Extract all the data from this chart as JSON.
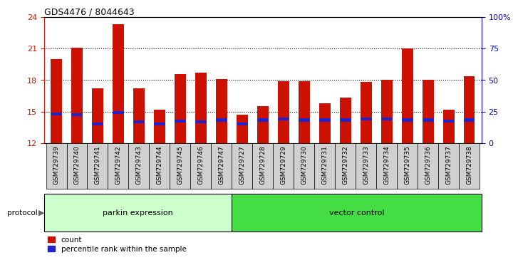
{
  "title": "GDS4476 / 8044643",
  "samples": [
    "GSM729739",
    "GSM729740",
    "GSM729741",
    "GSM729742",
    "GSM729743",
    "GSM729744",
    "GSM729745",
    "GSM729746",
    "GSM729747",
    "GSM729727",
    "GSM729728",
    "GSM729729",
    "GSM729730",
    "GSM729731",
    "GSM729732",
    "GSM729733",
    "GSM729734",
    "GSM729735",
    "GSM729736",
    "GSM729737",
    "GSM729738"
  ],
  "red_heights": [
    20.0,
    21.1,
    17.2,
    23.3,
    17.2,
    15.2,
    18.6,
    18.7,
    18.1,
    14.7,
    15.5,
    17.9,
    17.9,
    15.8,
    16.3,
    17.8,
    18.0,
    21.0,
    18.0,
    15.2,
    18.4
  ],
  "blue_values": [
    14.8,
    14.7,
    13.8,
    14.9,
    14.0,
    13.8,
    14.1,
    14.0,
    14.2,
    13.8,
    14.2,
    14.3,
    14.2,
    14.2,
    14.2,
    14.3,
    14.3,
    14.2,
    14.2,
    14.1,
    14.2
  ],
  "parkin_count": 9,
  "vector_count": 12,
  "ylim_left": [
    12,
    24
  ],
  "yticks_left": [
    12,
    15,
    18,
    21,
    24
  ],
  "yticks_right": [
    0,
    25,
    50,
    75,
    100
  ],
  "ytick_right_labels": [
    "0",
    "25",
    "50",
    "75",
    "100%"
  ],
  "bar_color": "#cc1100",
  "blue_color": "#2222cc",
  "parkin_bg": "#ccffcc",
  "vector_bg": "#44dd44",
  "grid_color": "#000000",
  "label_count": "count",
  "label_percentile": "percentile rank within the sample",
  "left_axis_color": "#cc1100",
  "right_axis_color": "#0000cc",
  "bar_width": 0.55
}
